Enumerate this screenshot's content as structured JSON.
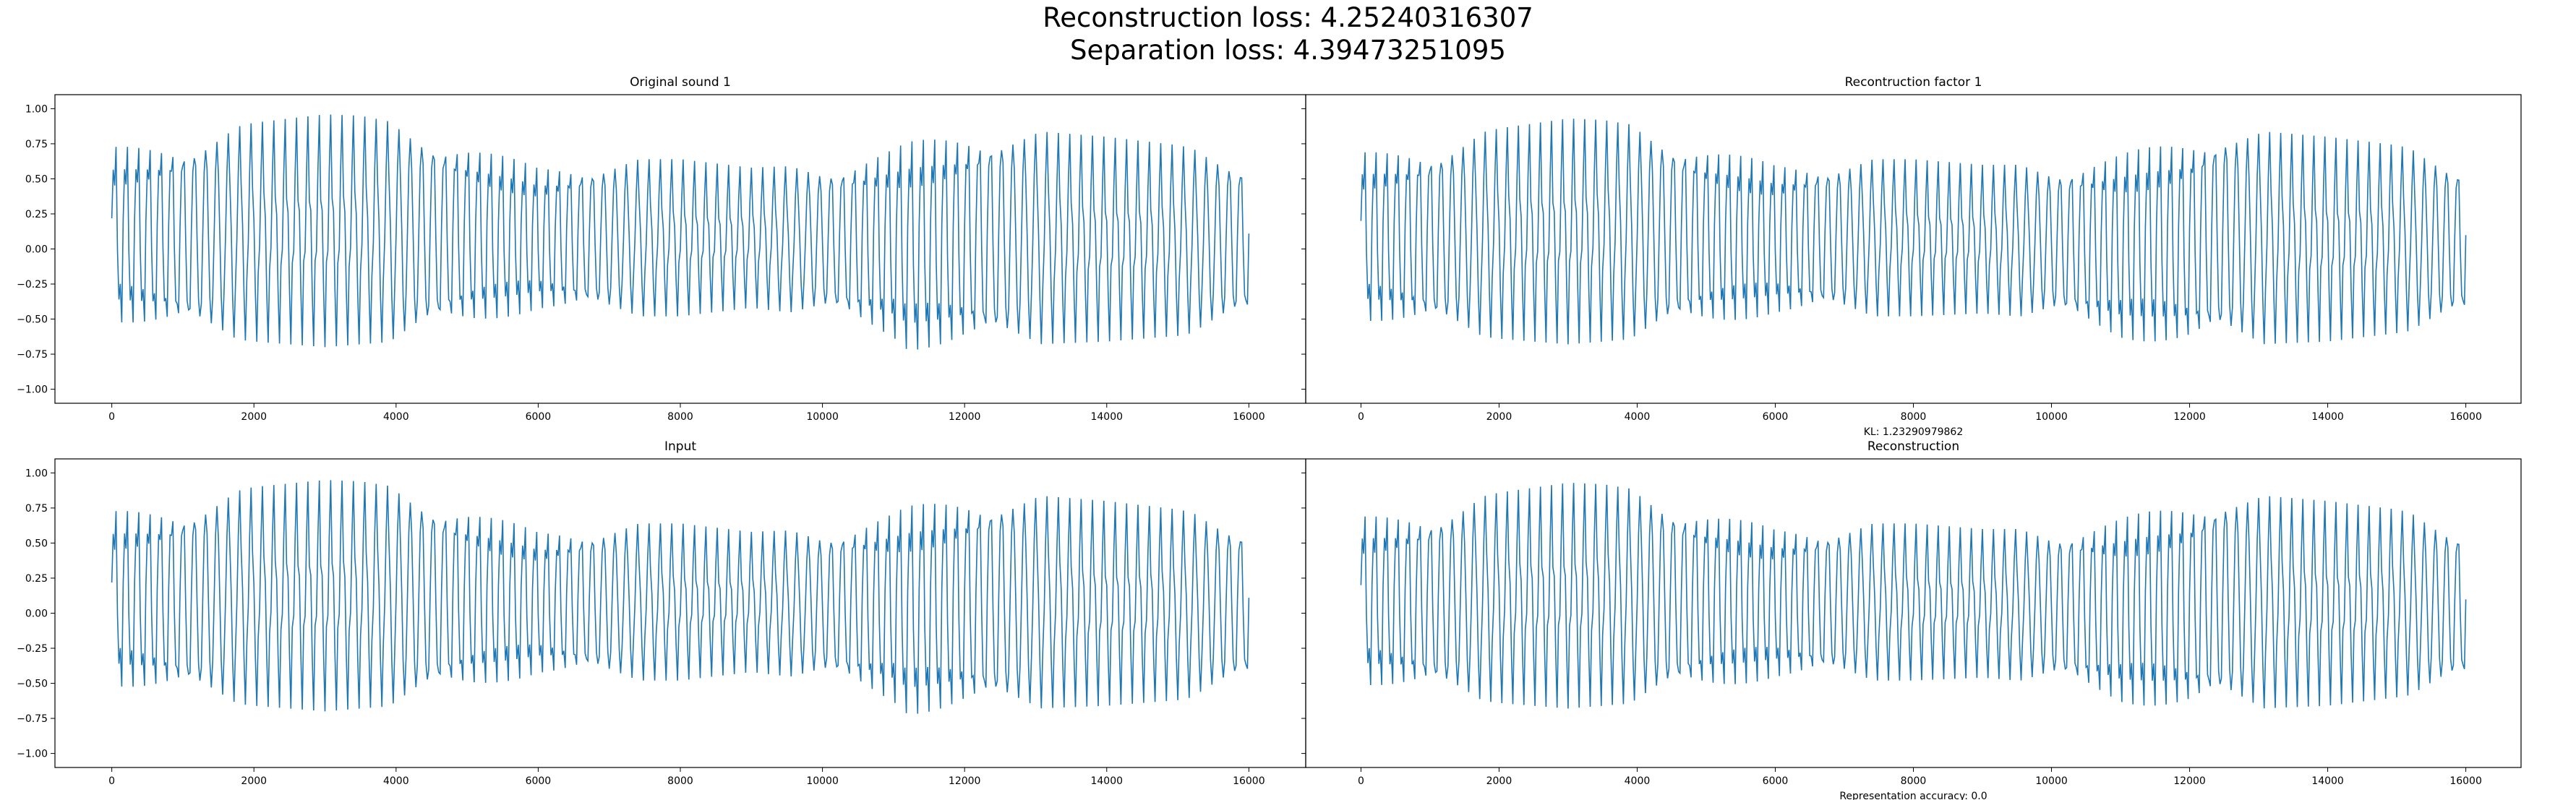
{
  "figure": {
    "suptitle_line1": "Reconstruction loss: 4.25240316307",
    "suptitle_line2": "Separation loss: 4.39473251095",
    "series_color": "#1f77b4"
  },
  "chart_data": [
    {
      "type": "line",
      "title": "Original sound 1",
      "xlabel": "",
      "ylabel": "",
      "xlim": [
        -800,
        16800
      ],
      "ylim": [
        -1.1,
        1.1
      ],
      "xticks": [
        0,
        2000,
        4000,
        6000,
        8000,
        10000,
        12000,
        14000,
        16000
      ],
      "yticks": [
        -1.0,
        -0.75,
        -0.5,
        -0.25,
        0.0,
        0.25,
        0.5,
        0.75,
        1.0
      ],
      "yticklabels": [
        "−1.00",
        "−0.75",
        "−0.50",
        "−0.25",
        "0.00",
        "0.25",
        "0.50",
        "0.75",
        "1.00"
      ],
      "grid": false,
      "samples": 16000,
      "envelope": {
        "x": [
          0,
          1000,
          2000,
          3000,
          3500,
          4000,
          5000,
          6000,
          7000,
          8000,
          9000,
          10000,
          11000,
          11200,
          12000,
          12500,
          13000,
          14000,
          15000,
          16000
        ],
        "upper": [
          0.74,
          0.78,
          0.9,
          0.96,
          0.95,
          0.9,
          0.76,
          0.6,
          0.64,
          0.64,
          0.58,
          0.6,
          0.74,
          0.78,
          0.84,
          0.86,
          0.84,
          0.8,
          0.74,
          0.64
        ],
        "lower": [
          -0.53,
          -0.6,
          -0.66,
          -0.7,
          -0.68,
          -0.66,
          -0.56,
          -0.45,
          -0.48,
          -0.48,
          -0.42,
          -0.48,
          -0.66,
          -0.74,
          -0.7,
          -0.7,
          -0.68,
          -0.66,
          -0.62,
          -0.52
        ]
      }
    },
    {
      "type": "line",
      "title": "Recontruction factor 1",
      "xlabel": "KL: 1.23290979862",
      "ylabel": "",
      "xlim": [
        -800,
        16800
      ],
      "ylim": [
        -1.1,
        1.1
      ],
      "xticks": [
        0,
        2000,
        4000,
        6000,
        8000,
        10000,
        12000,
        14000,
        16000
      ],
      "yticks": [],
      "grid": false,
      "samples": 16000,
      "envelope": {
        "x": [
          0,
          1000,
          2000,
          3000,
          3500,
          4000,
          5000,
          6000,
          7000,
          8000,
          9000,
          10000,
          11000,
          12000,
          12500,
          13000,
          14000,
          15000,
          16000
        ],
        "upper": [
          0.7,
          0.74,
          0.86,
          0.93,
          0.92,
          0.88,
          0.74,
          0.62,
          0.64,
          0.64,
          0.6,
          0.6,
          0.7,
          0.8,
          0.88,
          0.84,
          0.8,
          0.74,
          0.62
        ],
        "lower": [
          -0.52,
          -0.58,
          -0.64,
          -0.68,
          -0.66,
          -0.64,
          -0.56,
          -0.48,
          -0.48,
          -0.48,
          -0.46,
          -0.5,
          -0.66,
          -0.7,
          -0.68,
          -0.68,
          -0.66,
          -0.6,
          -0.52
        ]
      }
    },
    {
      "type": "line",
      "title": "Input",
      "xlabel": "",
      "ylabel": "",
      "xlim": [
        -800,
        16800
      ],
      "ylim": [
        -1.1,
        1.1
      ],
      "xticks": [
        0,
        2000,
        4000,
        6000,
        8000,
        10000,
        12000,
        14000,
        16000
      ],
      "yticks": [
        -1.0,
        -0.75,
        -0.5,
        -0.25,
        0.0,
        0.25,
        0.5,
        0.75,
        1.0
      ],
      "yticklabels": [
        "−1.00",
        "−0.75",
        "−0.50",
        "−0.25",
        "0.00",
        "0.25",
        "0.50",
        "0.75",
        "1.00"
      ],
      "grid": false,
      "samples": 16000,
      "envelope": {
        "x": [
          0,
          1000,
          2000,
          3000,
          3500,
          4000,
          5000,
          6000,
          7000,
          8000,
          9000,
          10000,
          11000,
          11200,
          12000,
          12500,
          13000,
          14000,
          15000,
          16000
        ],
        "upper": [
          0.74,
          0.78,
          0.9,
          0.95,
          0.94,
          0.9,
          0.76,
          0.6,
          0.64,
          0.64,
          0.58,
          0.6,
          0.74,
          0.78,
          0.84,
          0.86,
          0.84,
          0.8,
          0.74,
          0.64
        ],
        "lower": [
          -0.53,
          -0.6,
          -0.66,
          -0.7,
          -0.68,
          -0.66,
          -0.56,
          -0.45,
          -0.48,
          -0.48,
          -0.42,
          -0.48,
          -0.66,
          -0.74,
          -0.7,
          -0.7,
          -0.68,
          -0.66,
          -0.62,
          -0.52
        ]
      }
    },
    {
      "type": "line",
      "title": "Reconstruction",
      "xlabel": "Representation accuracy: 0.0",
      "ylabel": "",
      "xlim": [
        -800,
        16800
      ],
      "ylim": [
        -1.1,
        1.1
      ],
      "xticks": [
        0,
        2000,
        4000,
        6000,
        8000,
        10000,
        12000,
        14000,
        16000
      ],
      "yticks": [],
      "grid": false,
      "samples": 16000,
      "envelope": {
        "x": [
          0,
          1000,
          2000,
          3000,
          3500,
          4000,
          5000,
          6000,
          7000,
          8000,
          9000,
          10000,
          11000,
          12000,
          12500,
          13000,
          14000,
          15000,
          16000
        ],
        "upper": [
          0.7,
          0.74,
          0.86,
          0.93,
          0.92,
          0.88,
          0.74,
          0.62,
          0.64,
          0.64,
          0.6,
          0.6,
          0.7,
          0.8,
          0.88,
          0.84,
          0.8,
          0.74,
          0.62
        ],
        "lower": [
          -0.52,
          -0.58,
          -0.64,
          -0.68,
          -0.66,
          -0.64,
          -0.56,
          -0.48,
          -0.48,
          -0.48,
          -0.46,
          -0.5,
          -0.66,
          -0.7,
          -0.68,
          -0.68,
          -0.66,
          -0.6,
          -0.52
        ]
      }
    }
  ]
}
